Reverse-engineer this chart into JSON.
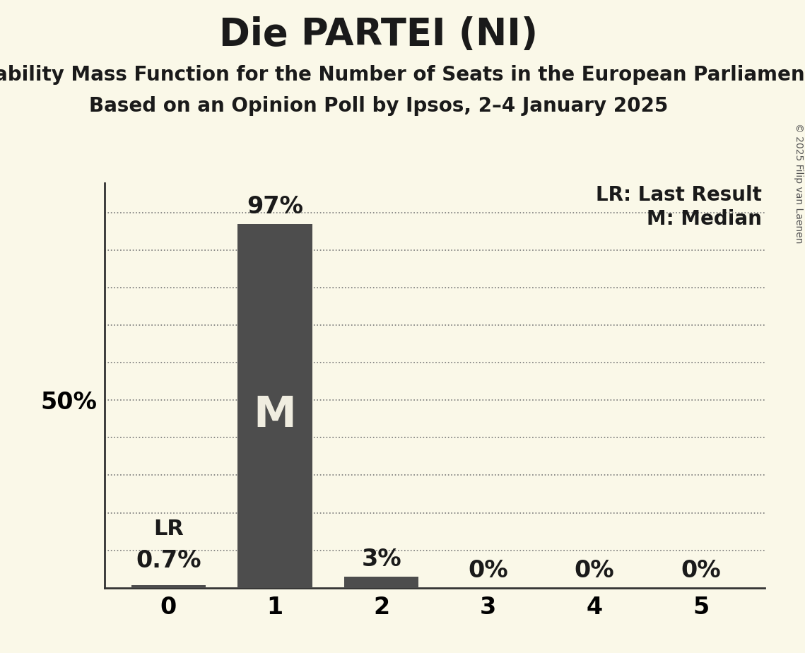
{
  "title": "Die PARTEI (NI)",
  "subtitle1": "Probability Mass Function for the Number of Seats in the European Parliament",
  "subtitle2": "Based on an Opinion Poll by Ipsos, 2–4 January 2025",
  "copyright": "© 2025 Filip van Laenen",
  "seats": [
    0,
    1,
    2,
    3,
    4,
    5
  ],
  "probabilities": [
    0.007,
    0.97,
    0.03,
    0.0,
    0.0,
    0.0
  ],
  "bar_color": "#4d4d4d",
  "background_color": "#faf8e8",
  "median_seat": 1,
  "last_result_seat": 0,
  "legend_lr": "LR: Last Result",
  "legend_m": "M: Median",
  "ytick_label": "50%",
  "ytick_value": 0.5,
  "ylabel_fontsize": 24,
  "title_fontsize": 38,
  "subtitle_fontsize": 20,
  "bar_label_fontsize": 24,
  "tick_fontsize": 24,
  "annotation_fontsize": 22,
  "legend_fontsize": 20,
  "copyright_fontsize": 10,
  "M_fontsize": 44
}
